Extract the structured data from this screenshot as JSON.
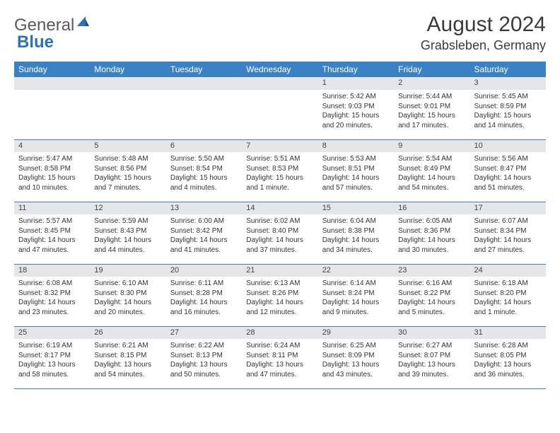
{
  "logo": {
    "part1": "General",
    "part2": "Blue"
  },
  "title": "August 2024",
  "location": "Grabsleben, Germany",
  "colors": {
    "header_bg": "#3b82c4",
    "header_text": "#ffffff",
    "daynum_bg": "#e4e6e8",
    "border": "#3b82c4",
    "logo_gray": "#5a5a5a",
    "logo_blue": "#2d72b5"
  },
  "day_headers": [
    "Sunday",
    "Monday",
    "Tuesday",
    "Wednesday",
    "Thursday",
    "Friday",
    "Saturday"
  ],
  "weeks": [
    {
      "nums": [
        "",
        "",
        "",
        "",
        "1",
        "2",
        "3"
      ],
      "cells": [
        null,
        null,
        null,
        null,
        {
          "sunrise": "5:42 AM",
          "sunset": "9:03 PM",
          "daylight": "15 hours and 20 minutes."
        },
        {
          "sunrise": "5:44 AM",
          "sunset": "9:01 PM",
          "daylight": "15 hours and 17 minutes."
        },
        {
          "sunrise": "5:45 AM",
          "sunset": "8:59 PM",
          "daylight": "15 hours and 14 minutes."
        }
      ]
    },
    {
      "nums": [
        "4",
        "5",
        "6",
        "7",
        "8",
        "9",
        "10"
      ],
      "cells": [
        {
          "sunrise": "5:47 AM",
          "sunset": "8:58 PM",
          "daylight": "15 hours and 10 minutes."
        },
        {
          "sunrise": "5:48 AM",
          "sunset": "8:56 PM",
          "daylight": "15 hours and 7 minutes."
        },
        {
          "sunrise": "5:50 AM",
          "sunset": "8:54 PM",
          "daylight": "15 hours and 4 minutes."
        },
        {
          "sunrise": "5:51 AM",
          "sunset": "8:53 PM",
          "daylight": "15 hours and 1 minute."
        },
        {
          "sunrise": "5:53 AM",
          "sunset": "8:51 PM",
          "daylight": "14 hours and 57 minutes."
        },
        {
          "sunrise": "5:54 AM",
          "sunset": "8:49 PM",
          "daylight": "14 hours and 54 minutes."
        },
        {
          "sunrise": "5:56 AM",
          "sunset": "8:47 PM",
          "daylight": "14 hours and 51 minutes."
        }
      ]
    },
    {
      "nums": [
        "11",
        "12",
        "13",
        "14",
        "15",
        "16",
        "17"
      ],
      "cells": [
        {
          "sunrise": "5:57 AM",
          "sunset": "8:45 PM",
          "daylight": "14 hours and 47 minutes."
        },
        {
          "sunrise": "5:59 AM",
          "sunset": "8:43 PM",
          "daylight": "14 hours and 44 minutes."
        },
        {
          "sunrise": "6:00 AM",
          "sunset": "8:42 PM",
          "daylight": "14 hours and 41 minutes."
        },
        {
          "sunrise": "6:02 AM",
          "sunset": "8:40 PM",
          "daylight": "14 hours and 37 minutes."
        },
        {
          "sunrise": "6:04 AM",
          "sunset": "8:38 PM",
          "daylight": "14 hours and 34 minutes."
        },
        {
          "sunrise": "6:05 AM",
          "sunset": "8:36 PM",
          "daylight": "14 hours and 30 minutes."
        },
        {
          "sunrise": "6:07 AM",
          "sunset": "8:34 PM",
          "daylight": "14 hours and 27 minutes."
        }
      ]
    },
    {
      "nums": [
        "18",
        "19",
        "20",
        "21",
        "22",
        "23",
        "24"
      ],
      "cells": [
        {
          "sunrise": "6:08 AM",
          "sunset": "8:32 PM",
          "daylight": "14 hours and 23 minutes."
        },
        {
          "sunrise": "6:10 AM",
          "sunset": "8:30 PM",
          "daylight": "14 hours and 20 minutes."
        },
        {
          "sunrise": "6:11 AM",
          "sunset": "8:28 PM",
          "daylight": "14 hours and 16 minutes."
        },
        {
          "sunrise": "6:13 AM",
          "sunset": "8:26 PM",
          "daylight": "14 hours and 12 minutes."
        },
        {
          "sunrise": "6:14 AM",
          "sunset": "8:24 PM",
          "daylight": "14 hours and 9 minutes."
        },
        {
          "sunrise": "6:16 AM",
          "sunset": "8:22 PM",
          "daylight": "14 hours and 5 minutes."
        },
        {
          "sunrise": "6:18 AM",
          "sunset": "8:20 PM",
          "daylight": "14 hours and 1 minute."
        }
      ]
    },
    {
      "nums": [
        "25",
        "26",
        "27",
        "28",
        "29",
        "30",
        "31"
      ],
      "cells": [
        {
          "sunrise": "6:19 AM",
          "sunset": "8:17 PM",
          "daylight": "13 hours and 58 minutes."
        },
        {
          "sunrise": "6:21 AM",
          "sunset": "8:15 PM",
          "daylight": "13 hours and 54 minutes."
        },
        {
          "sunrise": "6:22 AM",
          "sunset": "8:13 PM",
          "daylight": "13 hours and 50 minutes."
        },
        {
          "sunrise": "6:24 AM",
          "sunset": "8:11 PM",
          "daylight": "13 hours and 47 minutes."
        },
        {
          "sunrise": "6:25 AM",
          "sunset": "8:09 PM",
          "daylight": "13 hours and 43 minutes."
        },
        {
          "sunrise": "6:27 AM",
          "sunset": "8:07 PM",
          "daylight": "13 hours and 39 minutes."
        },
        {
          "sunrise": "6:28 AM",
          "sunset": "8:05 PM",
          "daylight": "13 hours and 36 minutes."
        }
      ]
    }
  ],
  "labels": {
    "sunrise": "Sunrise: ",
    "sunset": "Sunset: ",
    "daylight": "Daylight: "
  }
}
